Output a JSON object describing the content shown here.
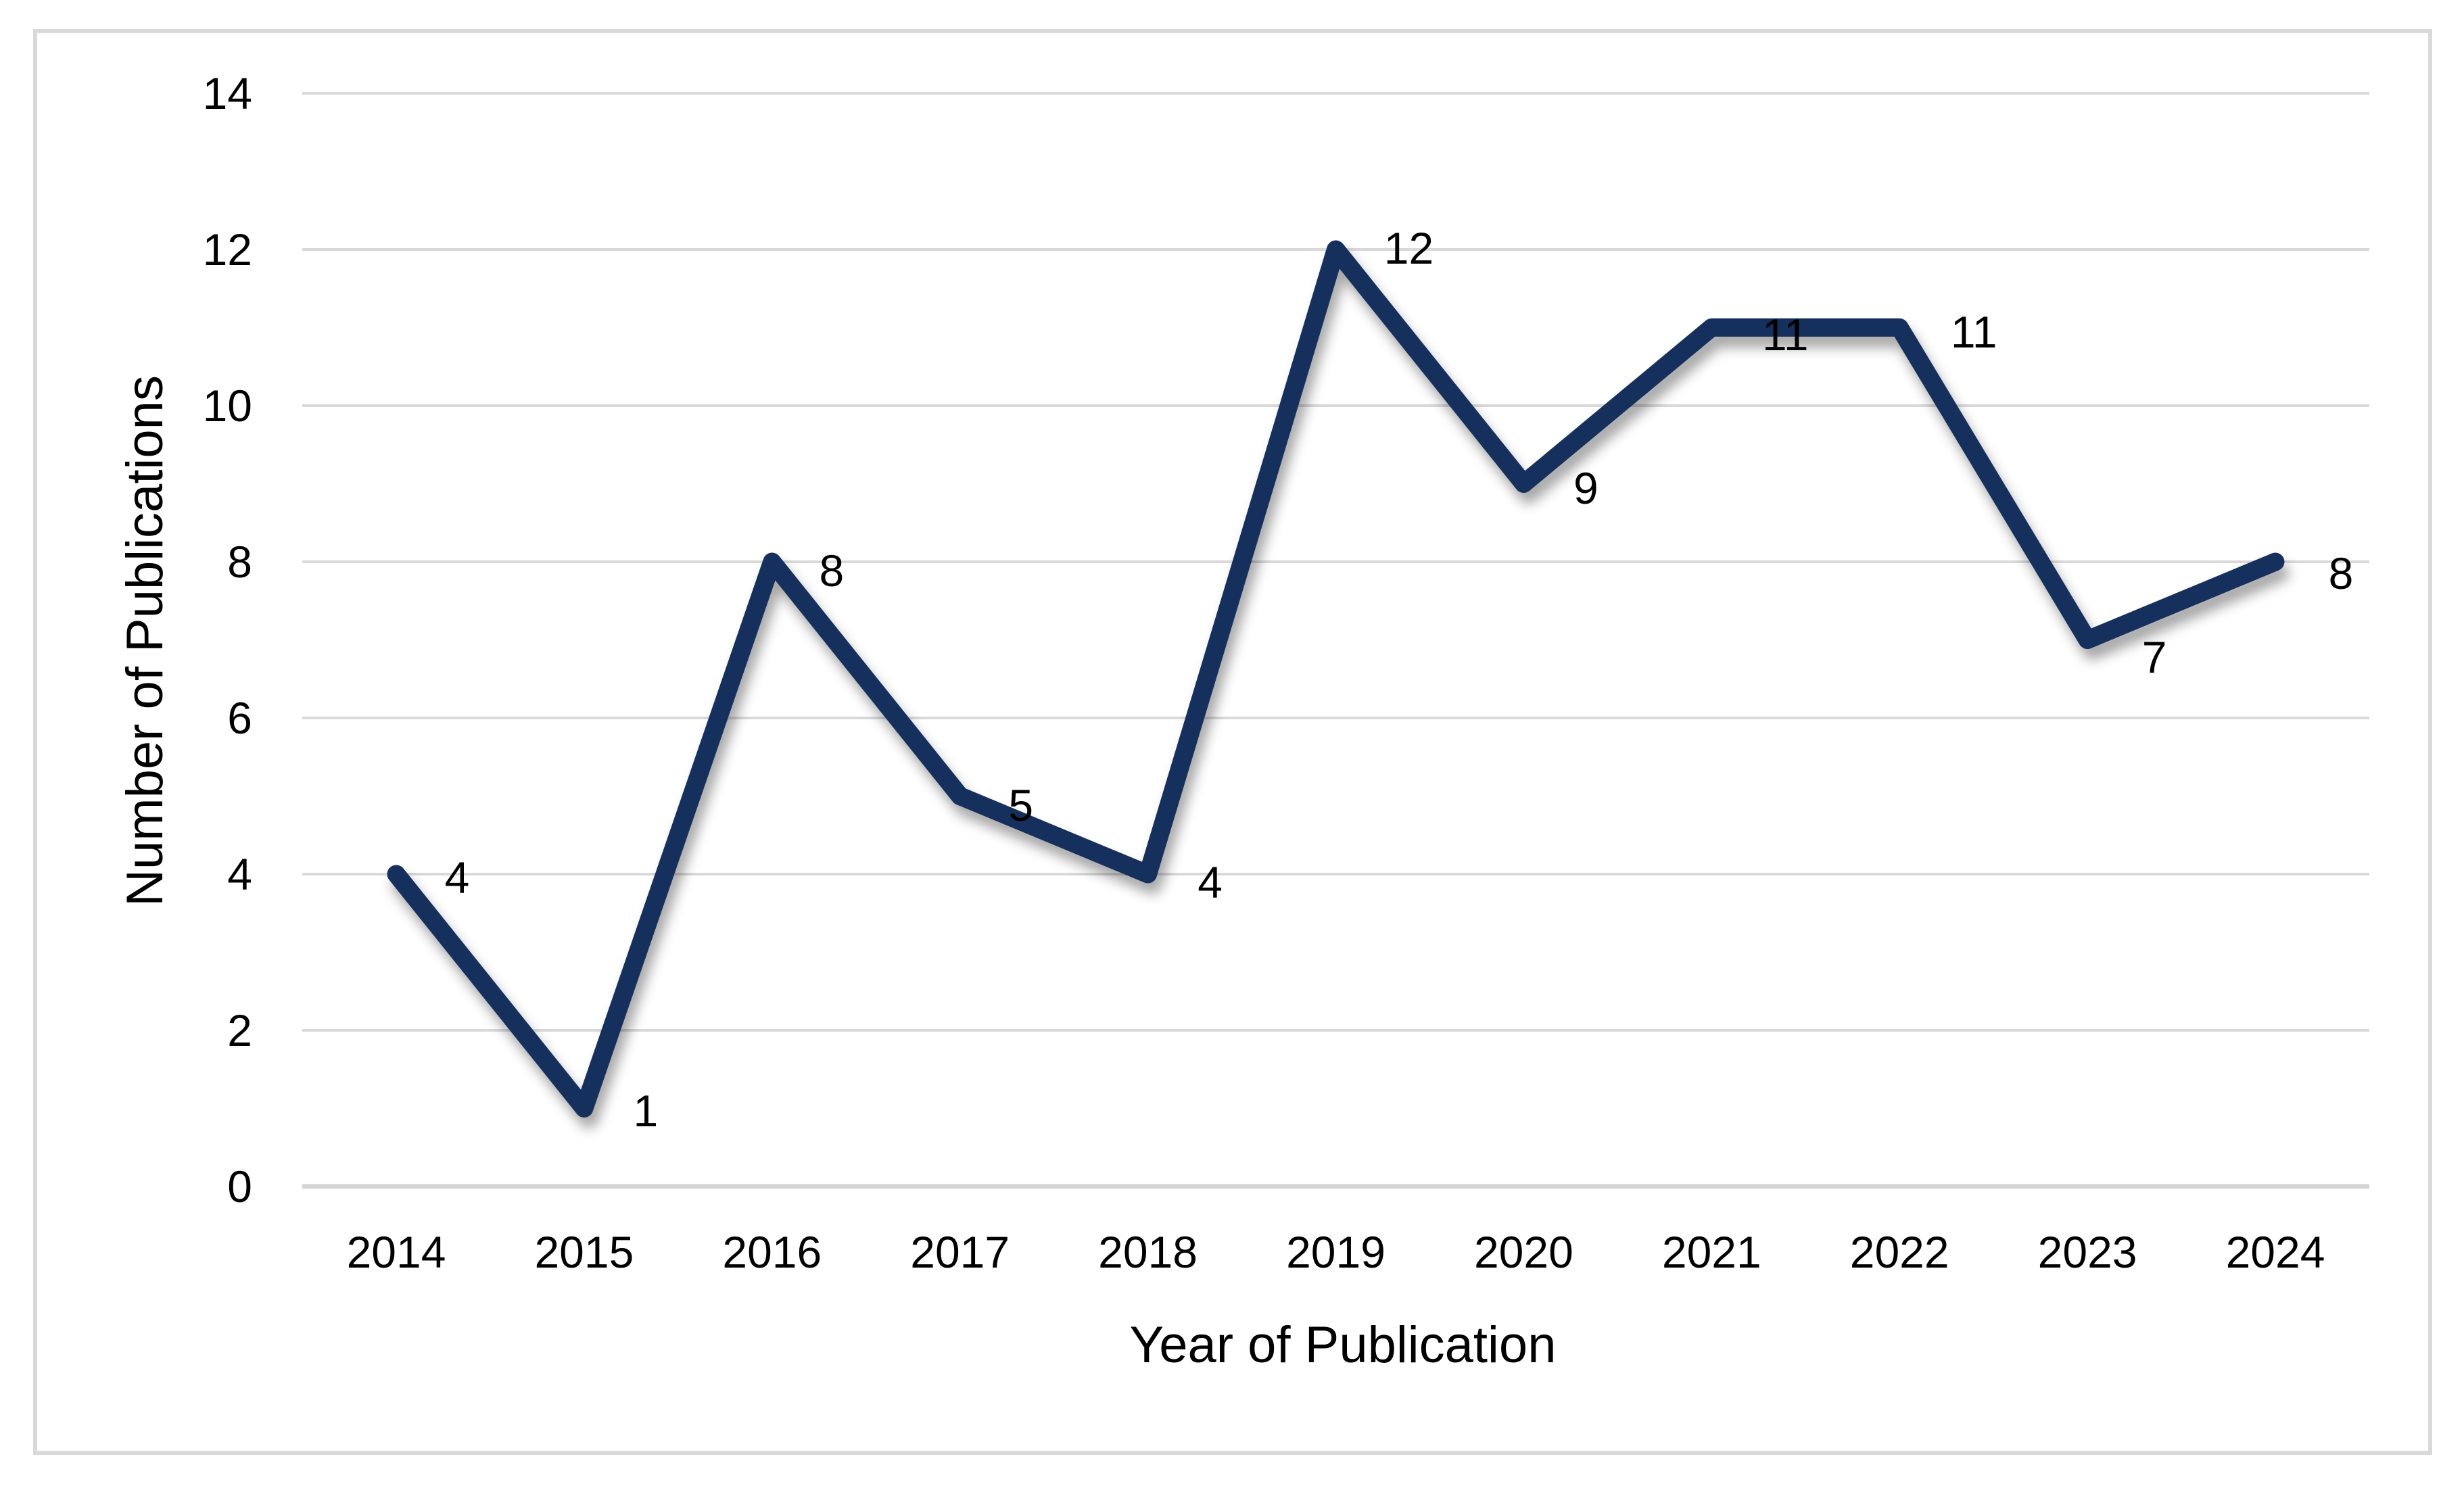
{
  "chart_data": {
    "type": "line",
    "categories": [
      "2014",
      "2015",
      "2016",
      "2017",
      "2018",
      "2019",
      "2020",
      "2021",
      "2022",
      "2023",
      "2024"
    ],
    "values": [
      4,
      1,
      8,
      5,
      4,
      12,
      9,
      11,
      11,
      7,
      8
    ],
    "data_labels": [
      "4",
      "1",
      "8",
      "5",
      "4",
      "12",
      "9",
      "11",
      "11",
      "7",
      "8"
    ],
    "xlabel": "Year of Publication",
    "ylabel": "Number of Publications",
    "yticks": [
      0,
      2,
      4,
      6,
      8,
      10,
      12,
      14
    ],
    "ylim": [
      0,
      14
    ],
    "grid": "horizontal",
    "legend": "none",
    "line_color": "#16305e",
    "gridline_color": "#d9d9d9",
    "axis_line_color": "#d4d4d4",
    "border_color": "#d9d9d9",
    "text_color": "#000000"
  }
}
